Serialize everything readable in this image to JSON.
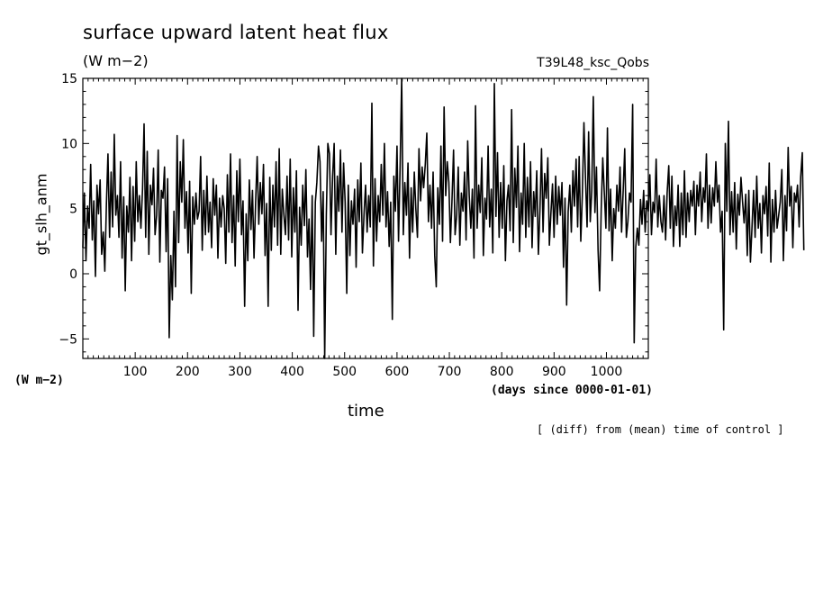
{
  "chart_data": {
    "type": "line",
    "title": "surface upward latent heat flux",
    "units": "(W m−2)",
    "run_label": "T39L48_ksc_Qobs",
    "xlabel": "time",
    "xunits": "(days since 0000-01-01)",
    "ylabel": "gt_slh_anm",
    "yunits": "(W m−2)",
    "note": "[ (diff) from (mean) time of control ]",
    "xlim": [
      0,
      1080
    ],
    "ylim": [
      -6.5,
      15
    ],
    "xticks": [
      100,
      200,
      300,
      400,
      500,
      600,
      700,
      800,
      900,
      1000
    ],
    "xtick_labels": [
      "100",
      "200",
      "300",
      "400",
      "500",
      "600",
      "700",
      "800",
      "900",
      "1000"
    ],
    "yticks": [
      -5,
      0,
      5,
      10,
      15
    ],
    "ytick_labels": [
      "−5",
      "0",
      "5",
      "10",
      "15"
    ],
    "series": [
      {
        "x_start": 0,
        "x_step": 3,
        "color": "#000000",
        "y": [
          2.0,
          6.2,
          1.0,
          5.2,
          3.5,
          8.4,
          2.6,
          5.6,
          -0.2,
          6.8,
          4.6,
          7.2,
          1.5,
          3.2,
          0.2,
          5.4,
          9.2,
          2.8,
          7.8,
          3.6,
          10.7,
          4.5,
          6.0,
          2.8,
          8.6,
          1.2,
          5.9,
          -1.3,
          5.2,
          3.2,
          7.4,
          1.0,
          6.7,
          2.5,
          8.6,
          4.0,
          6.0,
          3.5,
          6.5,
          11.5,
          2.8,
          9.4,
          1.5,
          6.8,
          5.3,
          8.1,
          3.0,
          4.5,
          9.5,
          0.9,
          6.4,
          5.8,
          8.2,
          1.7,
          7.3,
          -4.9,
          1.4,
          -2.0,
          4.8,
          -1.0,
          10.6,
          2.4,
          8.6,
          5.5,
          10.3,
          3.5,
          6.3,
          1.6,
          7.1,
          -1.5,
          5.9,
          3.8,
          6.2,
          4.2,
          4.8,
          9.0,
          1.8,
          6.4,
          3.0,
          7.5,
          3.2,
          5.5,
          2.0,
          7.3,
          4.5,
          6.8,
          1.2,
          5.8,
          3.6,
          6.0,
          5.0,
          0.8,
          7.6,
          3.2,
          9.2,
          2.4,
          6.0,
          0.6,
          7.9,
          4.0,
          8.8,
          3.0,
          5.6,
          -2.5,
          4.6,
          1.0,
          7.2,
          3.4,
          6.4,
          1.2,
          5.5,
          9.0,
          3.8,
          7.0,
          4.6,
          8.4,
          1.4,
          5.4,
          -2.5,
          7.4,
          1.8,
          6.8,
          3.6,
          8.6,
          2.2,
          9.6,
          1.5,
          6.5,
          4.5,
          3.0,
          7.5,
          2.6,
          8.8,
          1.3,
          6.6,
          3.2,
          7.9,
          -2.8,
          5.1,
          2.2,
          6.8,
          3.7,
          8.0,
          1.3,
          4.2,
          -1.2,
          6.0,
          -4.8,
          5.5,
          7.0,
          9.8,
          8.6,
          2.5,
          6.3,
          -6.5,
          4.5,
          10.0,
          9.2,
          3.0,
          7.5,
          10.0,
          1.5,
          7.5,
          4.8,
          9.5,
          3.2,
          8.5,
          5.5,
          -1.5,
          6.8,
          1.4,
          5.6,
          3.8,
          6.5,
          0.5,
          7.2,
          4.0,
          8.5,
          1.6,
          4.6,
          6.8,
          3.2,
          6.0,
          3.6,
          13.1,
          0.6,
          7.3,
          2.5,
          6.0,
          4.0,
          8.4,
          4.5,
          10.0,
          3.6,
          6.3,
          2.1,
          5.5,
          -3.5,
          7.5,
          4.8,
          9.8,
          2.5,
          8.4,
          15.0,
          3.0,
          7.0,
          4.5,
          8.5,
          1.2,
          6.6,
          3.2,
          7.8,
          5.0,
          2.8,
          9.6,
          5.6,
          8.2,
          6.6,
          8.4,
          10.8,
          4.0,
          6.8,
          3.5,
          7.8,
          1.4,
          -1.0,
          6.6,
          3.8,
          9.8,
          2.5,
          12.8,
          6.0,
          8.6,
          7.0,
          2.4,
          5.5,
          9.5,
          3.0,
          4.5,
          8.2,
          2.2,
          6.2,
          4.8,
          7.8,
          2.6,
          10.2,
          6.0,
          3.5,
          6.5,
          1.2,
          12.9,
          3.5,
          6.8,
          4.7,
          8.9,
          1.4,
          5.8,
          4.2,
          9.8,
          3.6,
          6.5,
          1.6,
          14.6,
          4.4,
          9.3,
          2.8,
          7.0,
          3.5,
          8.3,
          1.0,
          5.6,
          6.8,
          3.3,
          12.6,
          2.4,
          8.1,
          5.1,
          9.8,
          1.7,
          6.2,
          3.8,
          10.0,
          2.8,
          7.4,
          3.6,
          8.6,
          2.0,
          6.3,
          4.4,
          7.9,
          1.5,
          4.8,
          9.6,
          3.2,
          7.7,
          5.8,
          8.9,
          2.2,
          4.6,
          6.9,
          2.8,
          7.5,
          3.8,
          6.7,
          4.5,
          7.0,
          0.5,
          5.8,
          -2.4,
          4.8,
          6.8,
          3.2,
          7.9,
          5.2,
          8.8,
          3.6,
          9.0,
          2.5,
          6.0,
          11.6,
          7.4,
          3.6,
          10.9,
          4.0,
          6.4,
          13.6,
          4.7,
          8.2,
          1.8,
          -1.3,
          5.0,
          8.9,
          6.1,
          3.5,
          11.2,
          3.3,
          6.5,
          1.0,
          5.0,
          3.5,
          6.8,
          4.8,
          8.2,
          3.2,
          6.4,
          9.6,
          2.8,
          4.0,
          6.2,
          5.5,
          13.0,
          -5.3,
          2.0,
          3.5,
          2.2,
          5.7,
          3.8,
          6.4,
          3.2,
          5.6,
          4.8,
          7.6,
          3.0,
          5.5,
          4.7,
          8.8,
          3.6,
          6.0,
          4.0,
          3.2,
          6.0,
          2.6,
          6.2,
          8.3,
          3.5,
          7.5,
          2.1,
          5.2,
          3.7,
          6.8,
          2.1,
          6.2,
          3.0,
          7.9,
          2.8,
          6.2,
          4.0,
          6.4,
          5.2,
          7.1,
          3.0,
          6.8,
          5.2,
          7.8,
          4.0,
          6.6,
          5.5,
          9.2,
          3.5,
          6.8,
          3.9,
          6.6,
          5.2,
          8.6,
          5.5,
          6.8,
          3.2,
          4.8,
          -4.3,
          10.0,
          4.8,
          11.7,
          3.0,
          6.3,
          3.2,
          7.0,
          1.9,
          6.1,
          4.5,
          7.4,
          5.5,
          3.9,
          6.1,
          1.4,
          6.4,
          0.9,
          3.5,
          6.4,
          2.8,
          7.5,
          3.5,
          5.4,
          1.6,
          6.0,
          4.6,
          6.7,
          2.9,
          8.5,
          0.9,
          5.7,
          3.2,
          6.4,
          3.5,
          4.5,
          5.5,
          8.0,
          1.0,
          6.0,
          3.3,
          9.7,
          5.2,
          6.7,
          2.0,
          6.2,
          5.5,
          6.8,
          3.6,
          7.4,
          9.3,
          1.8
        ]
      }
    ],
    "grid": false,
    "legend": "none"
  }
}
